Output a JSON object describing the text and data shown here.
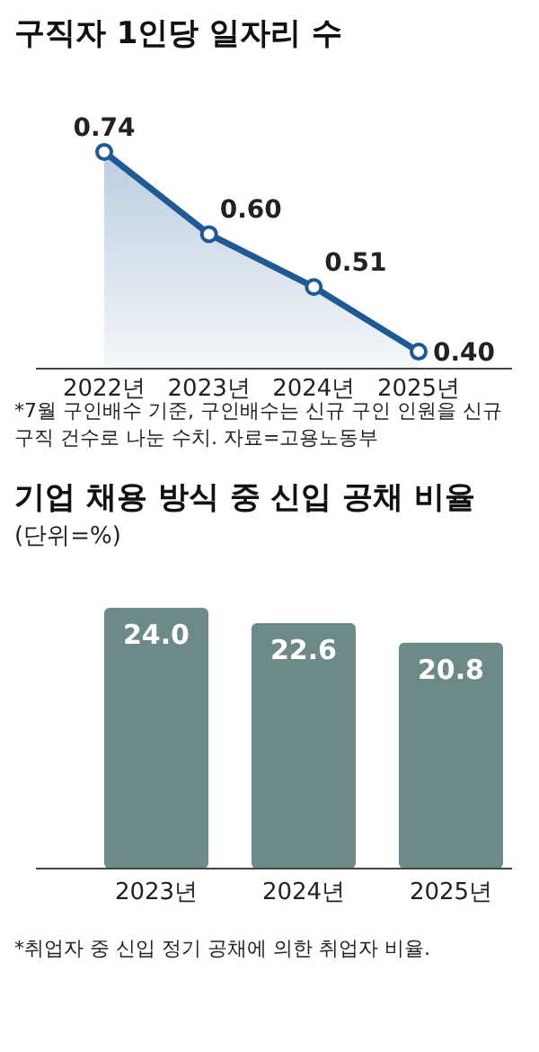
{
  "chart_data": [
    {
      "type": "area",
      "title": "구직자 1인당 일자리 수",
      "categories": [
        "2022년",
        "2023년",
        "2024년",
        "2025년"
      ],
      "values": [
        0.74,
        0.6,
        0.51,
        0.4
      ],
      "value_labels": [
        "0.74",
        "0.60",
        "0.51",
        "0.40"
      ],
      "color": "#1f5a96",
      "marker": "circle",
      "annotations": [
        "*7월 구인배수 기준, 구인배수는 신규 구인 인원을 신규 구직 건수로 나눈 수치. 자료=고용노동부"
      ]
    },
    {
      "type": "bar",
      "title": "기업 채용 방식 중 신입 공채 비율",
      "subtitle": "(단위=%)",
      "categories": [
        "2023년",
        "2024년",
        "2025년"
      ],
      "values": [
        24.0,
        22.6,
        20.8
      ],
      "value_labels": [
        "24.0",
        "22.6",
        "20.8"
      ],
      "color": "#6b8a88",
      "annotations": [
        "*취업자 중 신입 정기 공채에 의한 취업자 비율."
      ]
    }
  ]
}
